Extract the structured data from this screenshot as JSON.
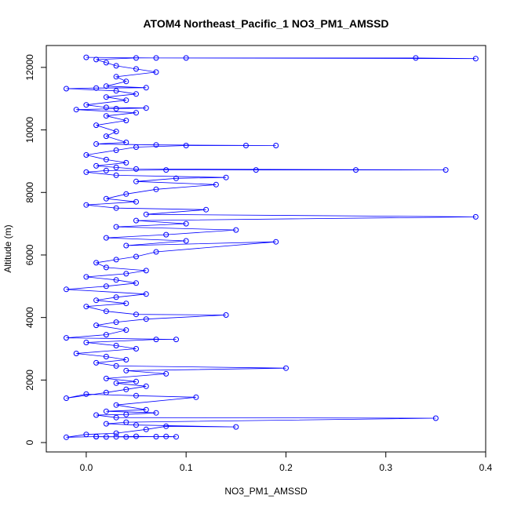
{
  "chart_data": {
    "type": "scatter",
    "title": "ATOM4 Northeast_Pacific_1 NO3_PM1_AMSSD",
    "xlabel": "NO3_PM1_AMSSD",
    "ylabel": "Altitude (m)",
    "xlim": [
      -0.04,
      0.4
    ],
    "ylim": [
      -300,
      12700
    ],
    "x_ticks": [
      "0.0",
      "0.1",
      "0.2",
      "0.3",
      "0.4"
    ],
    "y_ticks": [
      "0",
      "2000",
      "4000",
      "6000",
      "8000",
      "10000",
      "12000"
    ],
    "x_tick_values": [
      0.0,
      0.1,
      0.2,
      0.3,
      0.4
    ],
    "y_tick_values": [
      0,
      2000,
      4000,
      6000,
      8000,
      10000,
      12000
    ],
    "series_color": "#0000ff",
    "grid": false,
    "connected": true,
    "series": [
      {
        "points": [
          [
            0.02,
            180
          ],
          [
            0.01,
            190
          ],
          [
            0.03,
            185
          ],
          [
            0.05,
            200
          ],
          [
            0.07,
            190
          ],
          [
            0.09,
            185
          ],
          [
            0.08,
            195
          ],
          [
            0.04,
            180
          ],
          [
            0.01,
            190
          ],
          [
            -0.02,
            170
          ],
          [
            0.0,
            260
          ],
          [
            0.03,
            300
          ],
          [
            0.06,
            420
          ],
          [
            0.08,
            520
          ],
          [
            0.15,
            500
          ],
          [
            0.05,
            560
          ],
          [
            0.02,
            600
          ],
          [
            0.04,
            650
          ],
          [
            0.35,
            780
          ],
          [
            0.03,
            800
          ],
          [
            0.01,
            880
          ],
          [
            0.04,
            900
          ],
          [
            0.07,
            950
          ],
          [
            0.02,
            1000
          ],
          [
            0.06,
            1050
          ],
          [
            0.03,
            1200
          ],
          [
            0.11,
            1450
          ],
          [
            0.05,
            1500
          ],
          [
            0.0,
            1550
          ],
          [
            -0.02,
            1420
          ],
          [
            0.02,
            1600
          ],
          [
            0.04,
            1700
          ],
          [
            0.06,
            1800
          ],
          [
            0.03,
            1900
          ],
          [
            0.05,
            1950
          ],
          [
            0.02,
            2050
          ],
          [
            0.08,
            2200
          ],
          [
            0.04,
            2300
          ],
          [
            0.2,
            2380
          ],
          [
            0.03,
            2450
          ],
          [
            0.01,
            2550
          ],
          [
            0.04,
            2650
          ],
          [
            0.02,
            2750
          ],
          [
            -0.01,
            2850
          ],
          [
            0.05,
            3000
          ],
          [
            0.03,
            3100
          ],
          [
            0.0,
            3200
          ],
          [
            0.07,
            3300
          ],
          [
            0.09,
            3300
          ],
          [
            -0.02,
            3350
          ],
          [
            0.02,
            3450
          ],
          [
            0.04,
            3600
          ],
          [
            0.01,
            3750
          ],
          [
            0.03,
            3850
          ],
          [
            0.06,
            3950
          ],
          [
            0.14,
            4080
          ],
          [
            0.05,
            4100
          ],
          [
            0.02,
            4200
          ],
          [
            0.0,
            4350
          ],
          [
            0.04,
            4450
          ],
          [
            0.01,
            4550
          ],
          [
            0.03,
            4650
          ],
          [
            0.06,
            4750
          ],
          [
            -0.02,
            4900
          ],
          [
            0.02,
            5000
          ],
          [
            0.05,
            5100
          ],
          [
            0.03,
            5200
          ],
          [
            0.0,
            5300
          ],
          [
            0.04,
            5400
          ],
          [
            0.06,
            5500
          ],
          [
            0.02,
            5600
          ],
          [
            0.01,
            5750
          ],
          [
            0.03,
            5850
          ],
          [
            0.05,
            5950
          ],
          [
            0.07,
            6100
          ],
          [
            0.19,
            6420
          ],
          [
            0.04,
            6300
          ],
          [
            0.1,
            6450
          ],
          [
            0.02,
            6550
          ],
          [
            0.08,
            6650
          ],
          [
            0.15,
            6800
          ],
          [
            0.03,
            6900
          ],
          [
            0.1,
            7000
          ],
          [
            0.05,
            7100
          ],
          [
            0.39,
            7220
          ],
          [
            0.06,
            7300
          ],
          [
            0.12,
            7450
          ],
          [
            0.03,
            7500
          ],
          [
            0.0,
            7600
          ],
          [
            0.05,
            7700
          ],
          [
            0.02,
            7800
          ],
          [
            0.04,
            7950
          ],
          [
            0.07,
            8100
          ],
          [
            0.13,
            8250
          ],
          [
            0.05,
            8350
          ],
          [
            0.09,
            8450
          ],
          [
            0.14,
            8480
          ],
          [
            0.03,
            8550
          ],
          [
            0.0,
            8650
          ],
          [
            0.02,
            8700
          ],
          [
            0.08,
            8720
          ],
          [
            0.17,
            8720
          ],
          [
            0.27,
            8720
          ],
          [
            0.36,
            8720
          ],
          [
            0.05,
            8750
          ],
          [
            0.03,
            8800
          ],
          [
            0.01,
            8850
          ],
          [
            0.04,
            8950
          ],
          [
            0.02,
            9050
          ],
          [
            0.0,
            9200
          ],
          [
            0.03,
            9350
          ],
          [
            0.05,
            9450
          ],
          [
            0.1,
            9500
          ],
          [
            0.16,
            9500
          ],
          [
            0.19,
            9500
          ],
          [
            0.07,
            9520
          ],
          [
            0.01,
            9550
          ],
          [
            0.04,
            9600
          ],
          [
            0.02,
            9800
          ],
          [
            0.03,
            9950
          ],
          [
            0.01,
            10150
          ],
          [
            0.04,
            10300
          ],
          [
            0.02,
            10450
          ],
          [
            0.05,
            10550
          ],
          [
            -0.01,
            10650
          ],
          [
            0.03,
            10680
          ],
          [
            0.06,
            10700
          ],
          [
            0.02,
            10720
          ],
          [
            0.0,
            10800
          ],
          [
            0.04,
            10950
          ],
          [
            0.02,
            11050
          ],
          [
            0.05,
            11150
          ],
          [
            0.03,
            11250
          ],
          [
            -0.02,
            11320
          ],
          [
            0.01,
            11340
          ],
          [
            0.06,
            11350
          ],
          [
            0.02,
            11400
          ],
          [
            0.04,
            11550
          ],
          [
            0.03,
            11700
          ],
          [
            0.07,
            11850
          ],
          [
            0.05,
            11950
          ],
          [
            0.03,
            12050
          ],
          [
            0.02,
            12150
          ],
          [
            0.01,
            12250
          ],
          [
            0.05,
            12300
          ],
          [
            0.1,
            12300
          ],
          [
            0.33,
            12300
          ],
          [
            0.39,
            12280
          ],
          [
            0.07,
            12300
          ],
          [
            0.0,
            12320
          ]
        ]
      }
    ]
  }
}
